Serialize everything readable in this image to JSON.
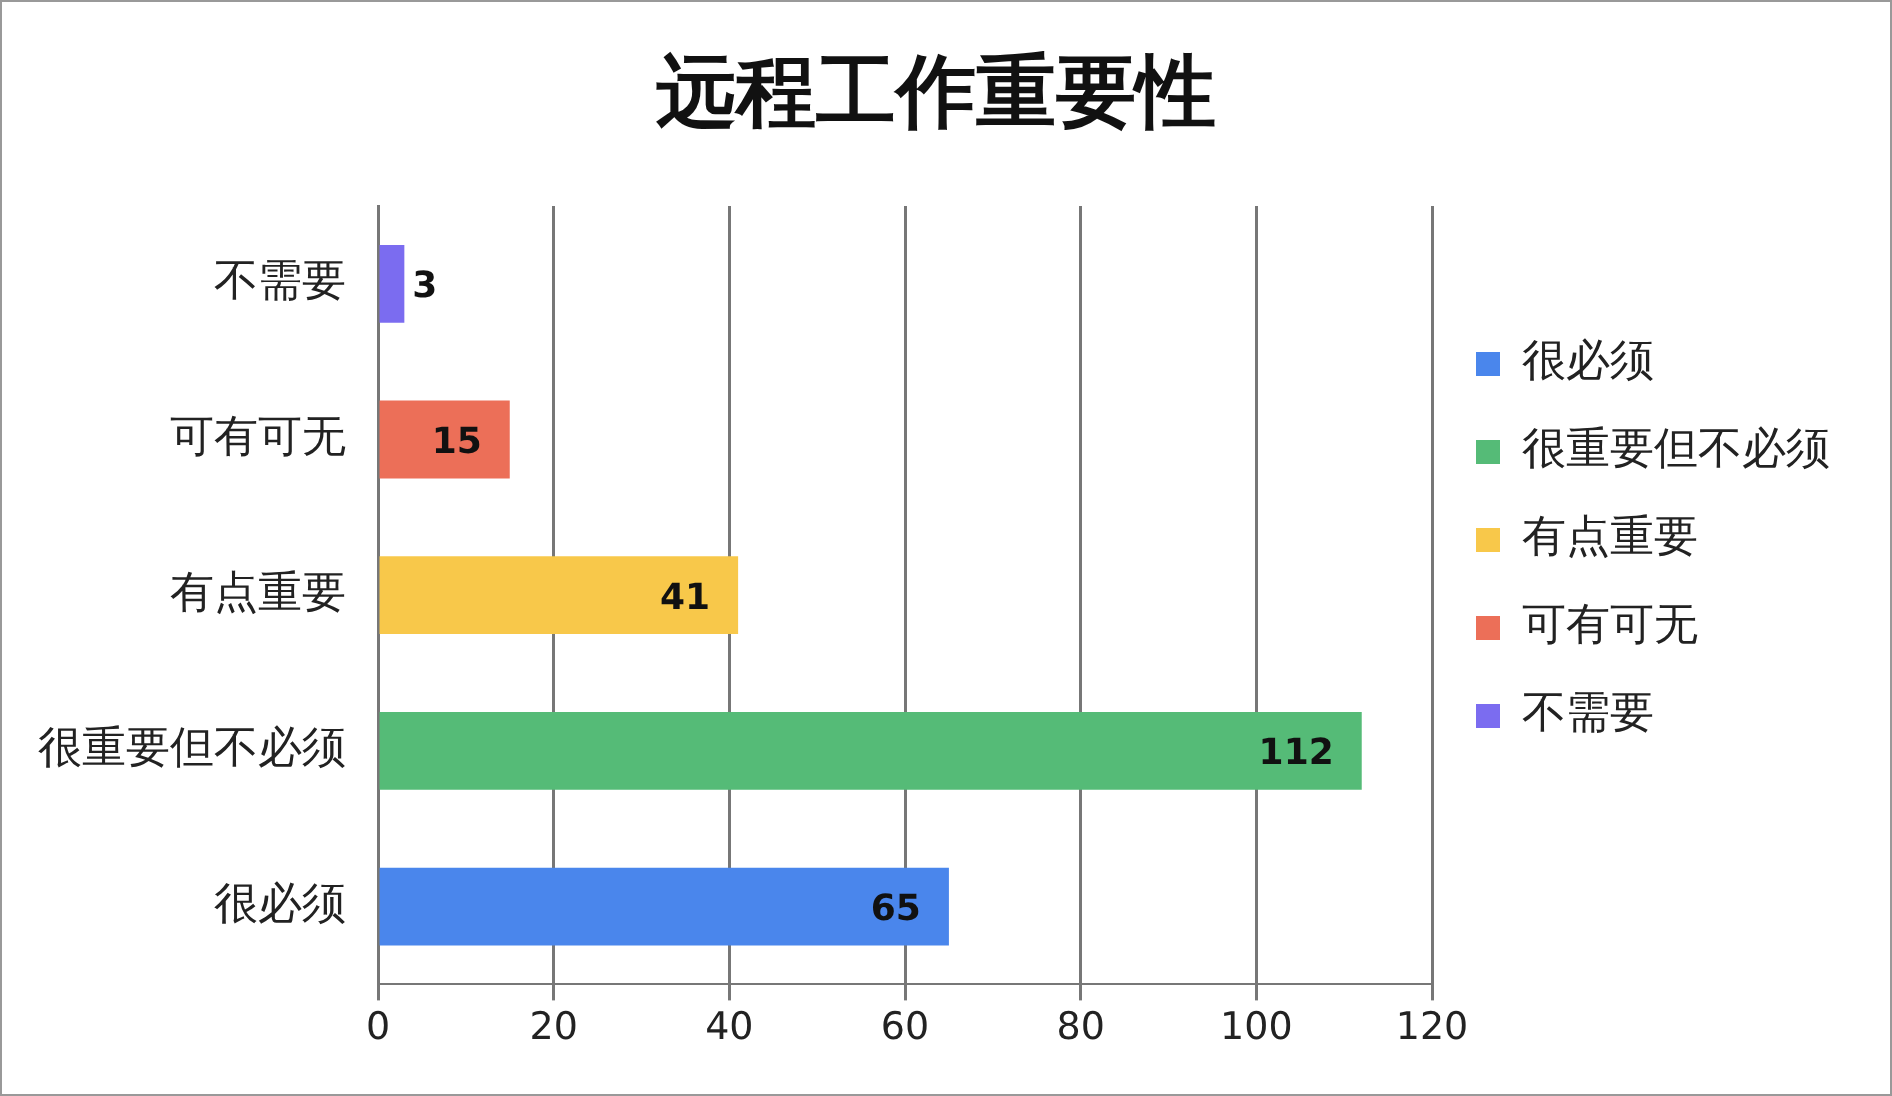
{
  "chart_data": {
    "type": "bar",
    "orientation": "horizontal",
    "title": "远程工作重要性",
    "categories": [
      "不需要",
      "可有可无",
      "有点重要",
      "很重要但不必须",
      "很必须"
    ],
    "series": [
      {
        "name": "很必须",
        "color": "#4a86ec",
        "values": [
          null,
          null,
          null,
          null,
          65
        ]
      },
      {
        "name": "很重要但不必须",
        "color": "#55bb77",
        "values": [
          null,
          null,
          null,
          112,
          null
        ]
      },
      {
        "name": "有点重要",
        "color": "#f8c84a",
        "values": [
          null,
          null,
          41,
          null,
          null
        ]
      },
      {
        "name": "可有可无",
        "color": "#ec6f58",
        "values": [
          null,
          15,
          null,
          null,
          null
        ]
      },
      {
        "name": "不需要",
        "color": "#7b6cf0",
        "values": [
          3,
          null,
          null,
          null,
          null
        ]
      }
    ],
    "xlim": [
      0,
      120
    ],
    "xticks": [
      0,
      20,
      40,
      60,
      80,
      100,
      120
    ],
    "grid": "x",
    "legend": "right",
    "data_labels": true
  }
}
